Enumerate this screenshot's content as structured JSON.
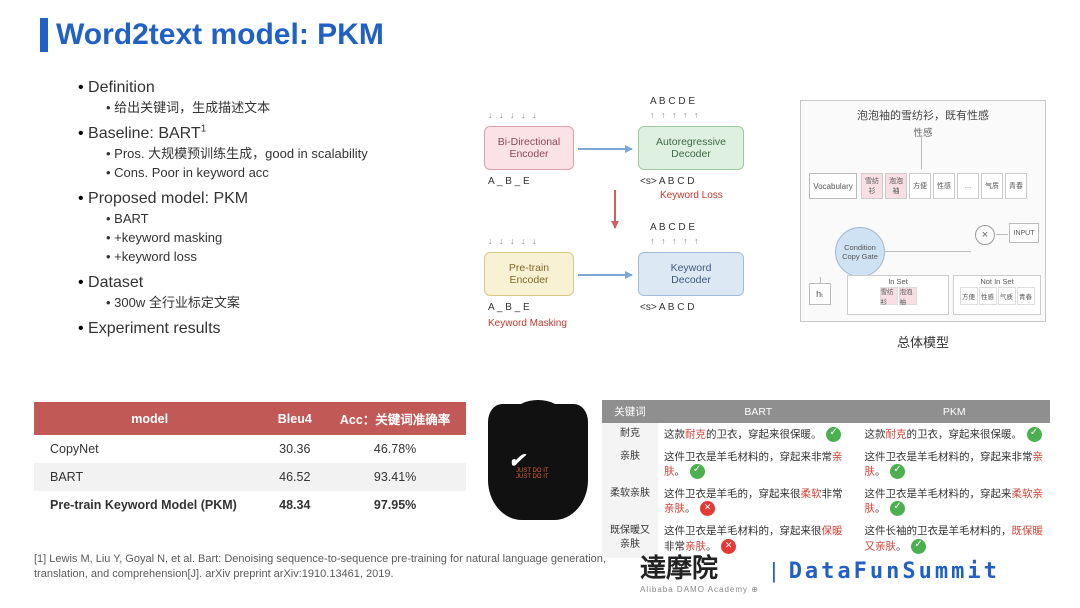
{
  "title": "Word2text model: PKM",
  "title_color": "#2160c4",
  "bullets": {
    "definition": "Definition",
    "definition_sub": "给出关键词，生成描述文本",
    "baseline": "Baseline: BART",
    "baseline_sup": "1",
    "baseline_pros": "Pros. 大规模预训练生成，good in scalability",
    "baseline_cons": "Cons. Poor in keyword acc",
    "proposed": "Proposed model: PKM",
    "proposed_a": "BART",
    "proposed_b": "+keyword masking",
    "proposed_c": "+keyword loss",
    "dataset": "Dataset",
    "dataset_sub": "300w 全行业标定文案",
    "exp": "Experiment results"
  },
  "diagram": {
    "box_bi_enc": "Bi-Directional\nEncoder",
    "box_auto_dec": "Autoregressive\nDecoder",
    "box_pre_enc": "Pre-train\nEncoder",
    "box_kw_dec": "Keyword\nDecoder",
    "letters_top_in": "A   _   B   _   E",
    "letters_top_out": "A   B   C   D   E",
    "letters_dec_in": "<s>  A  B  C  D",
    "kw_loss": "Keyword Loss",
    "kw_mask": "Keyword Masking",
    "panel_title": "泡泡袖的雪纺衫，既有性感",
    "panel_sub": "性感",
    "vocab": "Vocabulary",
    "copy": "Condition Copy Gate",
    "input": "INPUT",
    "in_set": "In Set",
    "not_in_set": "Not In Set",
    "in_tags": [
      "雪纺衫",
      "泡泡袖"
    ],
    "not_tags": [
      "方便",
      "性感",
      "气质",
      "青春"
    ],
    "vocab_tags": [
      "雪纺衫",
      "泡泡袖",
      "方便",
      "性感",
      "…",
      "气质",
      "青春"
    ],
    "ht": "hₜ",
    "overall": "总体模型"
  },
  "results": {
    "headers": [
      "model",
      "Bleu4",
      "Acc：关键词准确率"
    ],
    "rows": [
      [
        "CopyNet",
        "30.36",
        "46.78%"
      ],
      [
        "BART",
        "46.52",
        "93.41%"
      ],
      [
        "Pre-train Keyword Model (PKM)",
        "48.34",
        "97.95%"
      ]
    ]
  },
  "cmp": {
    "headers": [
      "关键词",
      "BART",
      "PKM"
    ],
    "rows": [
      {
        "kw": "耐克",
        "bart": "这款<kw>耐克</kw>的卫衣，穿起来很保暖。",
        "bart_ok": true,
        "pkm": "这款<kw>耐克</kw>的卫衣，穿起来很保暖。",
        "pkm_ok": true
      },
      {
        "kw": "亲肤",
        "bart": "这件卫衣是羊毛材料的，穿起来非常<kw>亲肤</kw>。",
        "bart_ok": true,
        "pkm": "这件卫衣是羊毛材料的，穿起来非常<kw>亲肤</kw>。",
        "pkm_ok": true
      },
      {
        "kw": "柔软亲肤",
        "bart": "这件卫衣是羊毛的，穿起来很<kw>柔软</kw>非常<kw>亲肤</kw>。",
        "bart_ok": false,
        "pkm": "这件卫衣是羊毛材料的，穿起来<kw>柔软亲肤</kw>。",
        "pkm_ok": true
      },
      {
        "kw": "既保暖又亲肤",
        "bart": "这件卫衣是羊毛材料的，穿起来很<kw>保暖</kw>非常<kw>亲肤</kw>。",
        "bart_ok": false,
        "pkm": "这件长袖的卫衣是羊毛材料的，<kw>既保暖又亲肤</kw>。",
        "pkm_ok": true
      }
    ]
  },
  "citation": "[1] Lewis M, Liu Y, Goyal N, et al. Bart: Denoising sequence-to-sequence pre-training for natural language generation, translation, and comprehension[J]. arXiv preprint arXiv:1910.13461, 2019.",
  "footer": {
    "damo": "達摩院",
    "damo_sub": "Alibaba DAMO Academy ⊕",
    "summit": "DataFunSummit"
  },
  "colors": {
    "header_red": "#c15a57",
    "brand_blue": "#2160c4"
  }
}
